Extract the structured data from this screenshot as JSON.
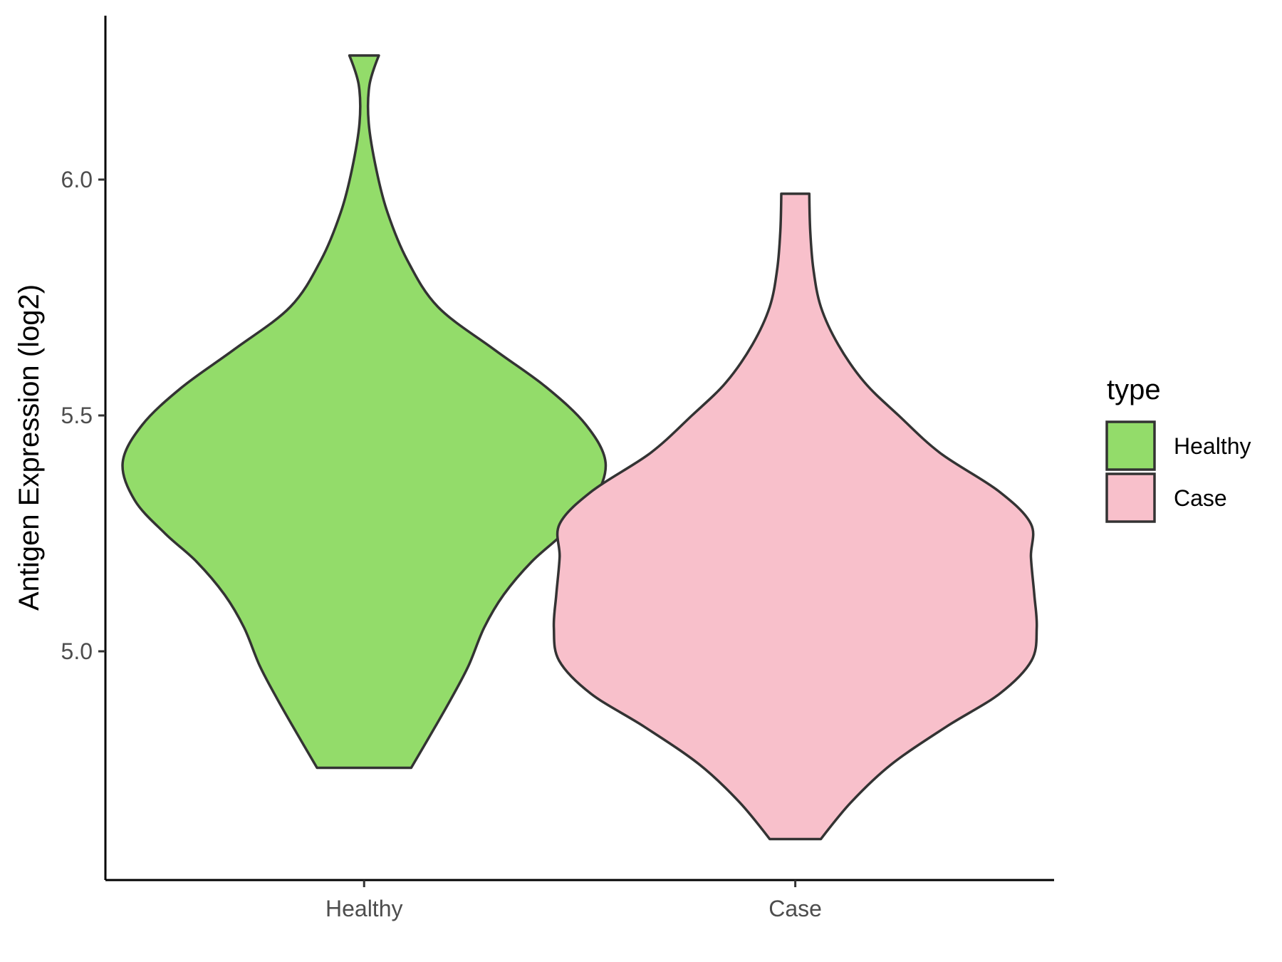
{
  "chart_data": {
    "type": "violin",
    "title": "",
    "xlabel": "",
    "ylabel": "Antigen Expression (log2)",
    "categories": [
      "Healthy",
      "Case"
    ],
    "ylim": [
      4.55,
      6.35
    ],
    "yticks": [
      5.0,
      5.5,
      6.0
    ],
    "ytick_labels": [
      "5.0",
      "5.5",
      "6.0"
    ],
    "grid": false,
    "legend": {
      "title": "type",
      "position": "right",
      "entries": [
        "Healthy",
        "Case"
      ]
    },
    "series": [
      {
        "name": "Healthy",
        "color": "#93DC6A",
        "min": 4.753,
        "max": 6.263,
        "density": [
          [
            4.753,
            0.195
          ],
          [
            4.83,
            0.283
          ],
          [
            4.9,
            0.361
          ],
          [
            4.97,
            0.433
          ],
          [
            5.05,
            0.497
          ],
          [
            5.12,
            0.578
          ],
          [
            5.19,
            0.694
          ],
          [
            5.25,
            0.825
          ],
          [
            5.32,
            0.95
          ],
          [
            5.4,
            1.0
          ],
          [
            5.48,
            0.919
          ],
          [
            5.56,
            0.754
          ],
          [
            5.64,
            0.538
          ],
          [
            5.73,
            0.306
          ],
          [
            5.83,
            0.178
          ],
          [
            5.93,
            0.097
          ],
          [
            6.02,
            0.051
          ],
          [
            6.12,
            0.019
          ],
          [
            6.2,
            0.022
          ],
          [
            6.263,
            0.061
          ]
        ]
      },
      {
        "name": "Case",
        "color": "#F8C0CB",
        "min": 4.602,
        "max": 5.97,
        "density": [
          [
            4.602,
            0.106
          ],
          [
            4.68,
            0.231
          ],
          [
            4.76,
            0.397
          ],
          [
            4.84,
            0.625
          ],
          [
            4.91,
            0.846
          ],
          [
            4.98,
            0.978
          ],
          [
            5.05,
            1.0
          ],
          [
            5.12,
            0.99
          ],
          [
            5.2,
            0.976
          ],
          [
            5.27,
            0.976
          ],
          [
            5.34,
            0.841
          ],
          [
            5.42,
            0.601
          ],
          [
            5.5,
            0.428
          ],
          [
            5.57,
            0.287
          ],
          [
            5.65,
            0.178
          ],
          [
            5.73,
            0.106
          ],
          [
            5.81,
            0.075
          ],
          [
            5.89,
            0.062
          ],
          [
            5.97,
            0.058
          ]
        ]
      }
    ]
  }
}
